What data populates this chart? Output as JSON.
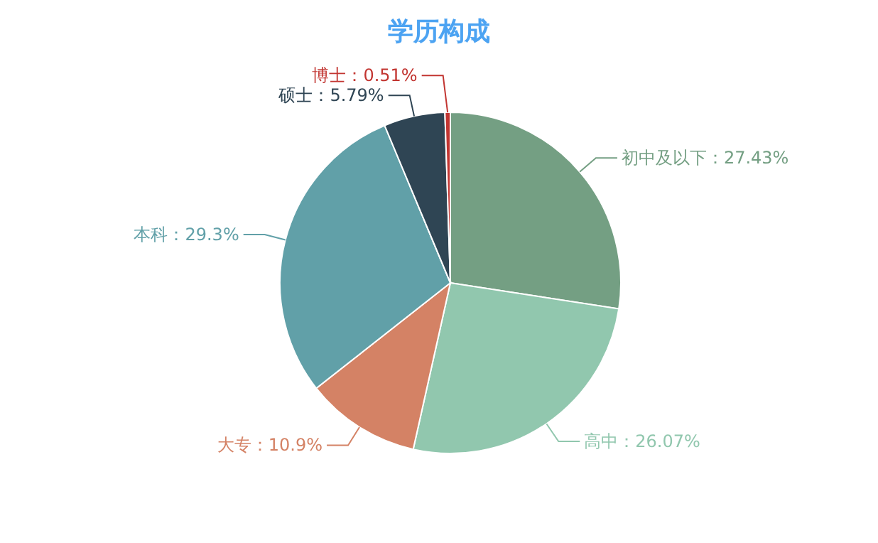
{
  "chart_data": {
    "type": "pie",
    "title": "学历构成",
    "categories": [
      "初中及以下",
      "高中",
      "大专",
      "本科",
      "硕士",
      "博士"
    ],
    "values": [
      27.43,
      26.07,
      10.9,
      29.3,
      5.79,
      0.51
    ],
    "colors": [
      "#749f83",
      "#91c7ae",
      "#d48265",
      "#61a0a8",
      "#2f4554",
      "#c23531"
    ],
    "value_labels": [
      "：27.43%",
      "：26.07%",
      "：10.9%",
      "：29.3%",
      "：5.79%",
      "：0.51%"
    ]
  }
}
